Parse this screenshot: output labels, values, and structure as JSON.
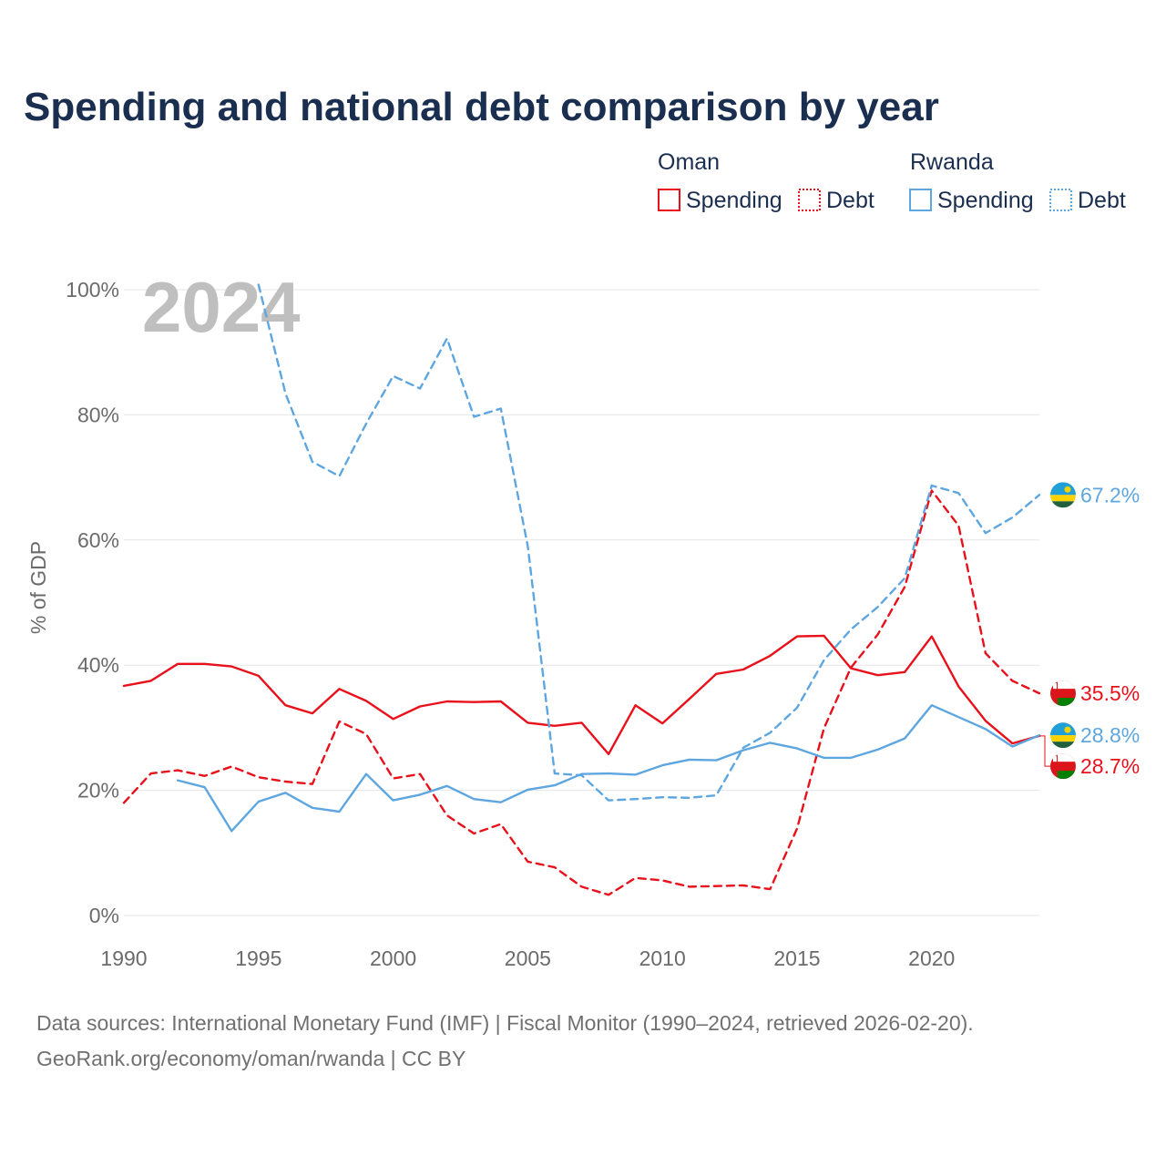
{
  "colors": {
    "title": "#1a2e4f",
    "oman": "#e8111b",
    "rwanda": "#5ea6e0",
    "grid": "#e6e6e6",
    "tick": "#6b6b6b",
    "watermark": "#bfbfbf",
    "source": "#707070"
  },
  "chart_data": {
    "type": "line",
    "title": "Spending and national debt comparison by year",
    "year_watermark": "2024",
    "xlabel": "",
    "ylabel": "% of GDP",
    "xlim": [
      1990,
      2024
    ],
    "ylim": [
      0,
      100
    ],
    "x_ticks": [
      {
        "value": 1990,
        "label": "1990"
      },
      {
        "value": 1995,
        "label": "1995"
      },
      {
        "value": 2000,
        "label": "2000"
      },
      {
        "value": 2005,
        "label": "2005"
      },
      {
        "value": 2010,
        "label": "2010"
      },
      {
        "value": 2015,
        "label": "2015"
      },
      {
        "value": 2020,
        "label": "2020"
      }
    ],
    "y_ticks": [
      {
        "value": 0,
        "label": "0%"
      },
      {
        "value": 20,
        "label": "20%"
      },
      {
        "value": 40,
        "label": "40%"
      },
      {
        "value": 60,
        "label": "60%"
      },
      {
        "value": 80,
        "label": "80%"
      },
      {
        "value": 100,
        "label": "100%"
      }
    ],
    "legend": {
      "placement": "top-right",
      "groups": [
        {
          "name": "Oman",
          "items": [
            {
              "label": "Spending",
              "style": "solid"
            },
            {
              "label": "Debt",
              "style": "dotted"
            }
          ]
        },
        {
          "name": "Rwanda",
          "items": [
            {
              "label": "Spending",
              "style": "solid"
            },
            {
              "label": "Debt",
              "style": "dotted"
            }
          ]
        }
      ]
    },
    "series": [
      {
        "id": "oman-spending",
        "name": "Oman Spending",
        "country": "oman",
        "style": "solid",
        "end_label": "28.7%",
        "points": [
          [
            1990,
            36.7
          ],
          [
            1991,
            37.5
          ],
          [
            1992,
            40.2
          ],
          [
            1993,
            40.2
          ],
          [
            1994,
            39.8
          ],
          [
            1995,
            38.3
          ],
          [
            1996,
            33.6
          ],
          [
            1997,
            32.3
          ],
          [
            1998,
            36.2
          ],
          [
            1999,
            34.3
          ],
          [
            2000,
            31.4
          ],
          [
            2001,
            33.4
          ],
          [
            2002,
            34.2
          ],
          [
            2003,
            34.1
          ],
          [
            2004,
            34.2
          ],
          [
            2005,
            30.8
          ],
          [
            2006,
            30.3
          ],
          [
            2007,
            30.8
          ],
          [
            2008,
            25.8
          ],
          [
            2009,
            33.6
          ],
          [
            2010,
            30.7
          ],
          [
            2011,
            34.6
          ],
          [
            2012,
            38.6
          ],
          [
            2013,
            39.3
          ],
          [
            2014,
            41.5
          ],
          [
            2015,
            44.6
          ],
          [
            2016,
            44.7
          ],
          [
            2017,
            39.5
          ],
          [
            2018,
            38.4
          ],
          [
            2019,
            38.9
          ],
          [
            2020,
            44.6
          ],
          [
            2021,
            36.6
          ],
          [
            2022,
            31.1
          ],
          [
            2023,
            27.5
          ],
          [
            2024,
            28.7
          ]
        ]
      },
      {
        "id": "oman-debt",
        "name": "Oman Debt",
        "country": "oman",
        "style": "dashed",
        "end_label": "35.5%",
        "points": [
          [
            1990,
            18.0
          ],
          [
            1991,
            22.7
          ],
          [
            1992,
            23.2
          ],
          [
            1993,
            22.3
          ],
          [
            1994,
            23.8
          ],
          [
            1995,
            22.1
          ],
          [
            1996,
            21.4
          ],
          [
            1997,
            21.0
          ],
          [
            1998,
            31.0
          ],
          [
            1999,
            29.0
          ],
          [
            2000,
            21.9
          ],
          [
            2001,
            22.6
          ],
          [
            2002,
            16.0
          ],
          [
            2003,
            13.1
          ],
          [
            2004,
            14.6
          ],
          [
            2005,
            8.6
          ],
          [
            2006,
            7.7
          ],
          [
            2007,
            4.6
          ],
          [
            2008,
            3.3
          ],
          [
            2009,
            6.0
          ],
          [
            2010,
            5.6
          ],
          [
            2011,
            4.6
          ],
          [
            2012,
            4.7
          ],
          [
            2013,
            4.8
          ],
          [
            2014,
            4.2
          ],
          [
            2015,
            13.9
          ],
          [
            2016,
            29.9
          ],
          [
            2017,
            39.6
          ],
          [
            2018,
            44.9
          ],
          [
            2019,
            52.5
          ],
          [
            2020,
            67.9
          ],
          [
            2021,
            62.3
          ],
          [
            2022,
            41.9
          ],
          [
            2023,
            37.5
          ],
          [
            2024,
            35.5
          ]
        ]
      },
      {
        "id": "rwanda-spending",
        "name": "Rwanda Spending",
        "country": "rwanda",
        "style": "solid",
        "end_label": "28.8%",
        "points": [
          [
            1992,
            21.6
          ],
          [
            1993,
            20.5
          ],
          [
            1994,
            13.5
          ],
          [
            1995,
            18.2
          ],
          [
            1996,
            19.6
          ],
          [
            1997,
            17.2
          ],
          [
            1998,
            16.6
          ],
          [
            1999,
            22.6
          ],
          [
            2000,
            18.4
          ],
          [
            2001,
            19.3
          ],
          [
            2002,
            20.7
          ],
          [
            2003,
            18.6
          ],
          [
            2004,
            18.1
          ],
          [
            2005,
            20.1
          ],
          [
            2006,
            20.8
          ],
          [
            2007,
            22.6
          ],
          [
            2008,
            22.7
          ],
          [
            2009,
            22.5
          ],
          [
            2010,
            24.0
          ],
          [
            2011,
            24.9
          ],
          [
            2012,
            24.8
          ],
          [
            2013,
            26.4
          ],
          [
            2014,
            27.6
          ],
          [
            2015,
            26.7
          ],
          [
            2016,
            25.2
          ],
          [
            2017,
            25.2
          ],
          [
            2018,
            26.5
          ],
          [
            2019,
            28.3
          ],
          [
            2020,
            33.6
          ],
          [
            2021,
            31.7
          ],
          [
            2022,
            29.8
          ],
          [
            2023,
            27.0
          ],
          [
            2024,
            28.8
          ]
        ]
      },
      {
        "id": "rwanda-debt",
        "name": "Rwanda Debt",
        "country": "rwanda",
        "style": "dashed",
        "end_label": "67.2%",
        "points": [
          [
            1995,
            100.8
          ],
          [
            1996,
            83.4
          ],
          [
            1997,
            72.5
          ],
          [
            1998,
            70.2
          ],
          [
            1999,
            78.6
          ],
          [
            2000,
            86.2
          ],
          [
            2001,
            84.2
          ],
          [
            2002,
            92.2
          ],
          [
            2003,
            79.7
          ],
          [
            2004,
            81.0
          ],
          [
            2005,
            59.0
          ],
          [
            2006,
            22.7
          ],
          [
            2007,
            22.4
          ],
          [
            2008,
            18.4
          ],
          [
            2009,
            18.6
          ],
          [
            2010,
            18.9
          ],
          [
            2011,
            18.8
          ],
          [
            2012,
            19.2
          ],
          [
            2013,
            26.8
          ],
          [
            2014,
            29.2
          ],
          [
            2015,
            33.2
          ],
          [
            2016,
            40.8
          ],
          [
            2017,
            45.7
          ],
          [
            2018,
            49.3
          ],
          [
            2019,
            53.9
          ],
          [
            2020,
            68.7
          ],
          [
            2021,
            67.5
          ],
          [
            2022,
            61.1
          ],
          [
            2023,
            63.6
          ],
          [
            2024,
            67.2
          ]
        ]
      }
    ],
    "source_lines": [
      "Data sources: International Monetary Fund (IMF) | Fiscal Monitor (1990–2024, retrieved 2026-02-20).",
      "GeoRank.org/economy/oman/rwanda | CC BY"
    ]
  }
}
